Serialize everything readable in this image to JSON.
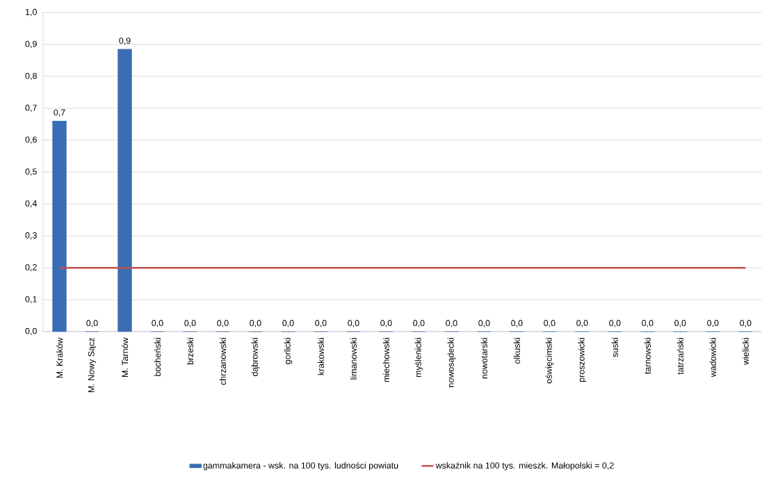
{
  "chart_data": {
    "type": "bar",
    "categories": [
      "M. Kraków",
      "M. Nowy Sącz",
      "M. Tarnów",
      "bocheński",
      "brzeski",
      "chrzanowski",
      "dąbrowski",
      "gorlicki",
      "krakowski",
      "limanowski",
      "miechowski",
      "myślenicki",
      "nowosądecki",
      "nowotarski",
      "olkuski",
      "oświęcimski",
      "proszowicki",
      "suski",
      "tarnowski",
      "tatrzański",
      "wadowicki",
      "wielicki"
    ],
    "series": [
      {
        "name": "gammakamera - wsk. na 100 tys. ludności powiatu",
        "color": "#3a6db4",
        "values": [
          0.66,
          0,
          0.885,
          0,
          0,
          0,
          0,
          0,
          0,
          0,
          0,
          0,
          0,
          0,
          0,
          0,
          0,
          0,
          0,
          0,
          0,
          0
        ],
        "value_labels": [
          "0,7",
          "0,0",
          "0,9",
          "0,0",
          "0,0",
          "0,0",
          "0,0",
          "0,0",
          "0,0",
          "0,0",
          "0,0",
          "0,0",
          "0,0",
          "0,0",
          "0,0",
          "0,0",
          "0,0",
          "0,0",
          "0,0",
          "0,0",
          "0,0",
          "0,0"
        ]
      },
      {
        "type": "line",
        "name": "wskaźnik na 100 tys. mieszk. Małopolski = 0,2",
        "color": "#c0504d",
        "values": [
          0.2,
          0.2,
          0.2,
          0.2,
          0.2,
          0.2,
          0.2,
          0.2,
          0.2,
          0.2,
          0.2,
          0.2,
          0.2,
          0.2,
          0.2,
          0.2,
          0.2,
          0.2,
          0.2,
          0.2,
          0.2,
          0.2
        ]
      }
    ],
    "ylim": [
      0,
      1
    ],
    "yticks": [
      {
        "value": 0,
        "label": "0,0"
      },
      {
        "value": 0.1,
        "label": "0,1"
      },
      {
        "value": 0.2,
        "label": "0,2"
      },
      {
        "value": 0.3,
        "label": "0,3"
      },
      {
        "value": 0.4,
        "label": "0,4"
      },
      {
        "value": 0.5,
        "label": "0,5"
      },
      {
        "value": 0.6,
        "label": "0,6"
      },
      {
        "value": 0.7,
        "label": "0,7"
      },
      {
        "value": 0.8,
        "label": "0,8"
      },
      {
        "value": 0.9,
        "label": "0,9"
      },
      {
        "value": 1,
        "label": "1,0"
      }
    ],
    "grid": "y",
    "legend": "bottom",
    "marker": "none"
  }
}
